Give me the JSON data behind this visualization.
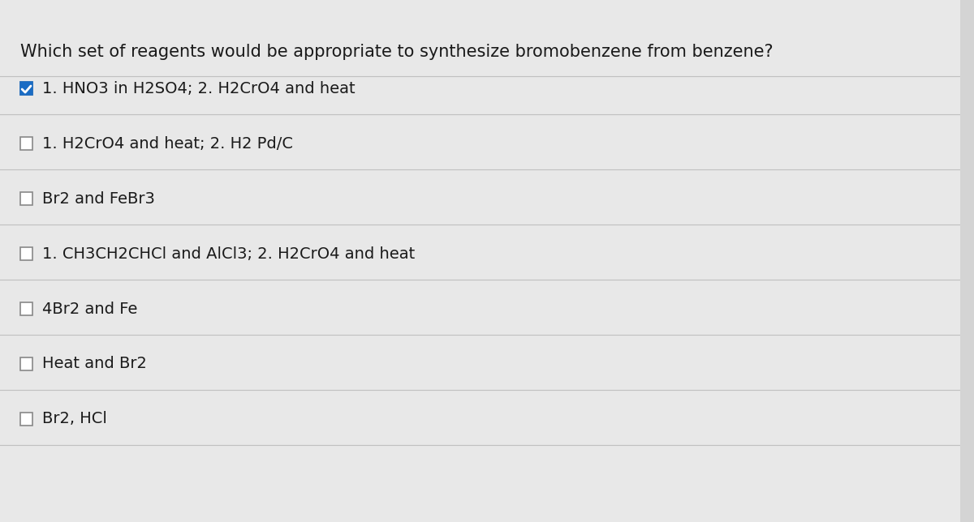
{
  "background_color": "#d4d4d4",
  "content_bg": "#e8e8e8",
  "question": "Which set of reagents would be appropriate to synthesize bromobenzene from benzene?",
  "options": [
    {
      "text": "1. HNO3 in H2SO4; 2. H2CrO4 and heat",
      "checked": true
    },
    {
      "text": "1. H2CrO4 and heat; 2. H2 Pd/C",
      "checked": false
    },
    {
      "text": "Br2 and FeBr3",
      "checked": false
    },
    {
      "text": "1. CH3CH2CHCl and AlCl3; 2. H2CrO4 and heat",
      "checked": false
    },
    {
      "text": "4Br2 and Fe",
      "checked": false
    },
    {
      "text": "Heat and Br2",
      "checked": false
    },
    {
      "text": "Br2, HCl",
      "checked": false
    }
  ],
  "question_fontsize": 15,
  "option_fontsize": 14,
  "text_color": "#1a1a1a",
  "checkbox_color": "#ffffff",
  "check_color": "#1a6cc4",
  "line_color": "#b0b0b0",
  "divider_color": "#c0c0c0"
}
